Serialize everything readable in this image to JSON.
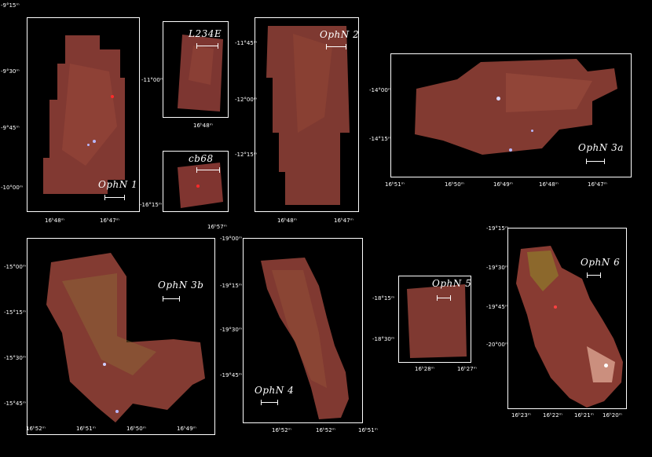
{
  "panels": {
    "p1": {
      "name": "OphN 1",
      "y": [
        "-9°15ᵐ",
        "-9°30ᵐ",
        "-9°45ᵐ",
        "-10°00ᵐ"
      ],
      "x": [
        "16ʰ48ᵐ",
        "16ʰ47ᵐ"
      ]
    },
    "l234": {
      "name": "L234E",
      "y": [
        "-11°00ᵐ"
      ],
      "x": [
        "16ʰ48ᵐ"
      ]
    },
    "cb68": {
      "name": "cb68",
      "y": [
        "-16°15ᵐ"
      ],
      "x": [
        "16ʰ57ᵐ"
      ]
    },
    "p2": {
      "name": "OphN 2",
      "y": [
        "-11°45ᵐ",
        "-12°00ᵐ",
        "-12°15ᵐ"
      ],
      "x": [
        "16ʰ48ᵐ",
        "16ʰ47ᵐ"
      ]
    },
    "p3a": {
      "name": "OphN 3a",
      "y": [
        "-14°00ᵐ",
        "-14°15ᵐ"
      ],
      "x": [
        "16ʰ51ᵐ",
        "16ʰ50ᵐ",
        "16ʰ49ᵐ",
        "16ʰ48ᵐ",
        "16ʰ47ᵐ"
      ]
    },
    "p3b": {
      "name": "OphN 3b",
      "y": [
        "-15°00ᵐ",
        "-15°15ᵐ",
        "-15°30ᵐ",
        "-15°45ᵐ"
      ],
      "x": [
        "16ʰ52ᵐ",
        "16ʰ51ᵐ",
        "16ʰ50ᵐ",
        "16ʰ49ᵐ"
      ]
    },
    "p4": {
      "name": "OphN 4",
      "y": [
        "-19°00ᵐ",
        "-19°15ᵐ",
        "-19°30ᵐ",
        "-19°45ᵐ"
      ],
      "x": [
        "16ʰ52ᵐ",
        "16ʰ52ᵐ",
        "16ʰ51ᵐ"
      ]
    },
    "p5": {
      "name": "OphN 5",
      "y": [
        "-18°15ᵐ",
        "-18°30ᵐ"
      ],
      "x": [
        "16ʰ28ᵐ",
        "16ʰ27ᵐ"
      ]
    },
    "p6": {
      "name": "OphN 6",
      "y": [
        "-19°15ᵐ",
        "-19°30ᵐ",
        "-19°45ᵐ",
        "-20°00ᵐ"
      ],
      "x": [
        "16ʰ23ᵐ",
        "16ʰ22ᵐ",
        "16ʰ21ᵐ",
        "16ʰ20ᵐ"
      ]
    }
  },
  "colors": {
    "nebula": "#8a3a2a",
    "nebula_light": "#b0553a",
    "star": "#b8b8ff",
    "background": "#000000"
  }
}
